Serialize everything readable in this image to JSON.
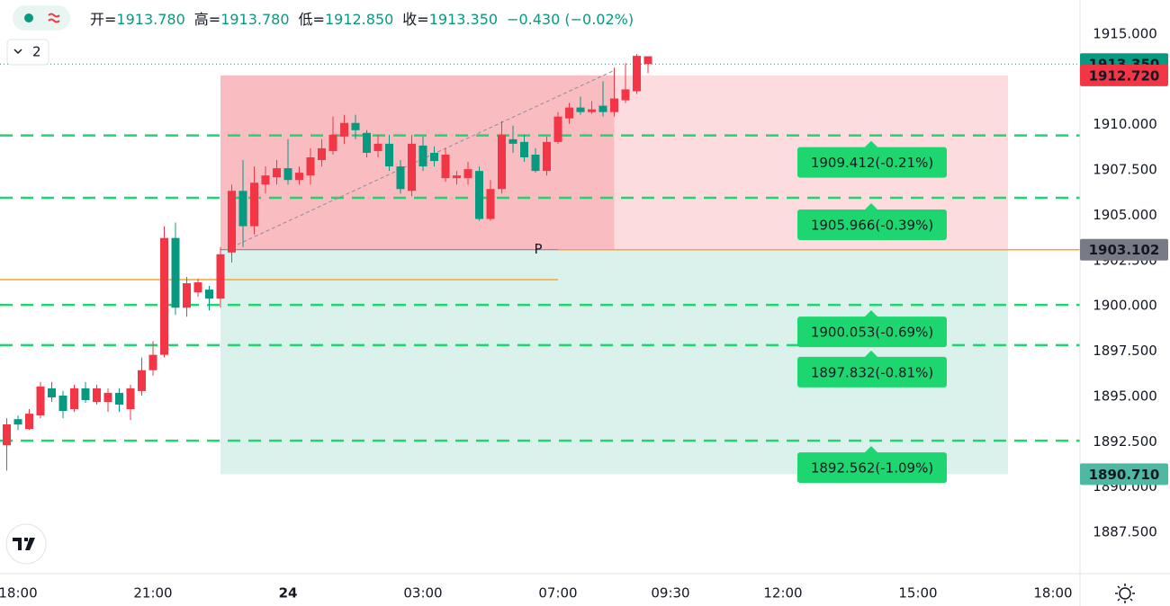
{
  "chart_data": {
    "type": "candlestick",
    "header": [
      {
        "key": "开=",
        "val": "1913.780"
      },
      {
        "key": "高=",
        "val": "1913.780"
      },
      {
        "key": "低=",
        "val": "1912.850"
      },
      {
        "key": "收=",
        "val": "1913.350"
      },
      {
        "key": "",
        "val": "−0.430 (−0.02%)"
      }
    ],
    "indicator_count": "2",
    "up_color": "#089981",
    "down_color": "#f23645",
    "grid": true,
    "x": [
      -1,
      0,
      1,
      2,
      3,
      4,
      5,
      6,
      7,
      8,
      9,
      10,
      11,
      12,
      13,
      14,
      15,
      16,
      17,
      18,
      19,
      20,
      21,
      22,
      23,
      24,
      25,
      26,
      27,
      28,
      29,
      30,
      31,
      32,
      33,
      34,
      35,
      36,
      37,
      38,
      39,
      40,
      41,
      42,
      43,
      44,
      45,
      46,
      47,
      48,
      49,
      50,
      51,
      52,
      53,
      54,
      55,
      56
    ],
    "open": [
      1893.46,
      1893.45,
      1894.05,
      1895.55,
      1894.95,
      1894.2,
      1895.45,
      1894.8,
      1895.45,
      1895.2,
      1894.55,
      1895.45,
      1896.45,
      1897.3,
      1903.75,
      1899.9,
      1901.25,
      1901.3,
      1900.4,
      1902.85,
      1906.35,
      1904.4,
      1906.8,
      1907.2,
      1907.6,
      1906.95,
      1907.35,
      1908.2,
      1908.7,
      1909.45,
      1910.1,
      1909.7,
      1908.45,
      1908.95,
      1907.7,
      1906.45,
      1908.95,
      1907.7,
      1908.0,
      1908.35,
      1907.2,
      1907.55,
      1904.8,
      1906.45,
      1909.45,
      1908.95,
      1908.2,
      1907.45,
      1909.05,
      1910.45,
      1910.95,
      1910.7,
      1910.85,
      1910.7,
      1911.45,
      1911.95,
      1913.8,
      1913.78
    ],
    "high": [
      1893.8,
      1893.95,
      1894.3,
      1895.8,
      1895.8,
      1895.3,
      1895.65,
      1895.8,
      1895.65,
      1895.45,
      1895.45,
      1895.65,
      1897.15,
      1898.05,
      1904.4,
      1904.6,
      1901.6,
      1901.5,
      1901.1,
      1903.25,
      1906.7,
      1908.05,
      1907.7,
      1907.7,
      1908.05,
      1909.2,
      1907.7,
      1908.7,
      1909.2,
      1910.45,
      1910.55,
      1910.55,
      1909.7,
      1909.45,
      1909.45,
      1908.05,
      1909.45,
      1909.35,
      1908.8,
      1908.7,
      1907.45,
      1907.95,
      1907.7,
      1906.95,
      1910.2,
      1909.95,
      1909.45,
      1908.7,
      1909.35,
      1910.7,
      1911.2,
      1911.55,
      1911.3,
      1912.4,
      1913.15,
      1913.4,
      1913.9,
      1913.78
    ],
    "low": [
      1890.9,
      1893.15,
      1893.15,
      1893.8,
      1894.7,
      1893.8,
      1894.15,
      1894.65,
      1894.55,
      1894.15,
      1894.15,
      1893.7,
      1895.05,
      1896.15,
      1897.15,
      1899.5,
      1899.4,
      1900.5,
      1899.75,
      1899.9,
      1902.4,
      1903.25,
      1903.95,
      1906.2,
      1906.7,
      1906.7,
      1906.7,
      1906.7,
      1907.7,
      1908.35,
      1908.95,
      1909.2,
      1908.2,
      1908.2,
      1907.45,
      1906.2,
      1906.05,
      1907.45,
      1907.7,
      1906.85,
      1906.7,
      1906.7,
      1904.7,
      1904.7,
      1906.2,
      1908.45,
      1907.95,
      1907.35,
      1907.2,
      1908.95,
      1910.05,
      1910.55,
      1910.6,
      1910.45,
      1910.45,
      1911.2,
      1911.7,
      1912.85
    ],
    "close": [
      1892.31,
      1893.75,
      1893.2,
      1893.95,
      1895.45,
      1895.05,
      1894.3,
      1895.45,
      1894.7,
      1894.7,
      1895.2,
      1894.3,
      1895.3,
      1896.45,
      1897.3,
      1903.75,
      1899.9,
      1900.75,
      1900.9,
      1900.4,
      1902.95,
      1906.35,
      1904.4,
      1906.7,
      1907.1,
      1907.6,
      1906.95,
      1907.2,
      1908.05,
      1908.55,
      1909.35,
      1910.1,
      1909.55,
      1908.55,
      1908.95,
      1907.7,
      1906.35,
      1908.85,
      1908.45,
      1907.05,
      1907.05,
      1907.05,
      1907.45,
      1904.8,
      1906.45,
      1909.2,
      1909.05,
      1908.35,
      1907.45,
      1909.05,
      1910.35,
      1910.95,
      1910.7,
      1911.05,
      1910.7,
      1911.35,
      1911.85,
      1913.35
    ],
    "xlim": [
      -1.6,
      94.4
    ],
    "xticks": [
      {
        "value": 0,
        "label": "18:00"
      },
      {
        "value": 12,
        "label": "21:00"
      },
      24,
      {
        "value": 36,
        "label": "03:00"
      },
      {
        "value": 48,
        "label": "07:00"
      },
      {
        "value": 58,
        "label": "09:30"
      },
      {
        "value": 68,
        "label": "12:00"
      },
      {
        "value": 80,
        "label": "15:00"
      },
      {
        "value": 92,
        "label": "18:00"
      }
    ],
    "ylim": [
      1885.22,
      1916.886
    ],
    "yticks": [
      {
        "value": 1887.5,
        "label": "1887.500"
      },
      {
        "value": 1890,
        "label": "1890.000"
      },
      {
        "value": 1892.5,
        "label": "1892.500"
      },
      {
        "value": 1895,
        "label": "1895.000"
      },
      {
        "value": 1897.5,
        "label": "1897.500"
      },
      {
        "value": 1900,
        "label": "1900.000"
      },
      {
        "value": 1902.5,
        "label": "1902.500"
      },
      {
        "value": 1905,
        "label": "1905.000"
      },
      {
        "value": 1907.5,
        "label": "1907.500"
      },
      {
        "value": 1910,
        "label": "1910.000"
      },
      {
        "value": 1912.5,
        "label": "1912.500"
      },
      {
        "value": 1915,
        "label": "1915.000"
      }
    ],
    "position": {
      "entry": 1903.102,
      "target": 1912.72,
      "stop": 1890.71,
      "start": 18,
      "end": 88,
      "current": 53,
      "marker": "P"
    },
    "trend_line": {
      "x": [
        19,
        53
      ],
      "y": [
        1903.24,
        1913.0
      ]
    },
    "orange_lines": [
      {
        "value": 1901.45,
        "from": -1.6,
        "to": 48
      },
      {
        "value": 1903.102,
        "from": 48,
        "to": 94.4
      }
    ],
    "levels": [
      {
        "value": 1909.412,
        "label": "1909.412(-0.21%)"
      },
      {
        "value": 1905.966,
        "label": "1905.966(-0.39%)"
      },
      {
        "value": 1900.053,
        "label": "1900.053(-0.69%)"
      },
      {
        "value": 1897.832,
        "label": "1897.832(-0.81%)"
      },
      {
        "value": 1892.562,
        "label": "1892.562(-1.09%)"
      }
    ],
    "price_tags": [
      {
        "value": 1913.35,
        "label": "1913.350",
        "color": "#089981",
        "dotted": true
      },
      {
        "value": 1912.72,
        "label": "1912.720",
        "color": "#f23645"
      },
      {
        "value": 1903.102,
        "label": "1903.102",
        "color": "#787b86"
      },
      {
        "value": 1890.71,
        "label": "1890.710",
        "color": "#4fb8a2"
      }
    ]
  }
}
